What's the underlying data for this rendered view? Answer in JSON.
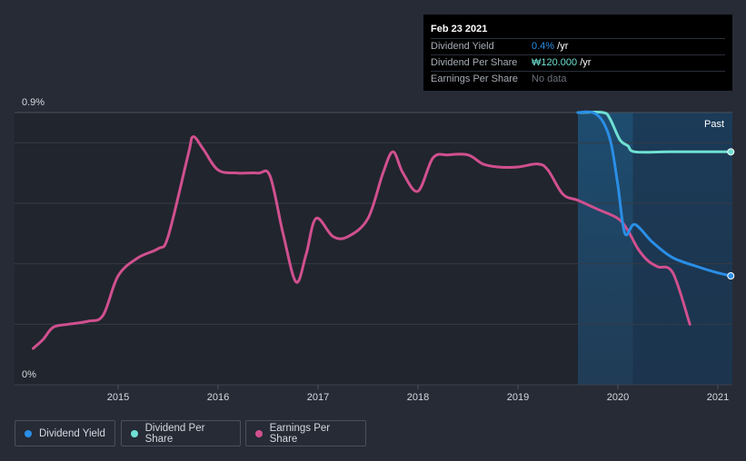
{
  "chart_data": {
    "type": "line",
    "title": "",
    "ylabel": "",
    "ylim": [
      0,
      0.9
    ],
    "y_tick_labels": [
      "0.9%",
      "0%"
    ],
    "x_tick_labels": [
      "2015",
      "2016",
      "2017",
      "2018",
      "2019",
      "2020",
      "2021"
    ],
    "past_label": "Past",
    "series": [
      {
        "name": "Dividend Yield",
        "color": "#2a8ee6",
        "x": [
          2019.6,
          2019.75,
          2019.85,
          2019.93,
          2020.0,
          2020.07,
          2020.17,
          2020.35,
          2020.55,
          2020.8,
          2021.0,
          2021.13
        ],
        "y": [
          0.9,
          0.9,
          0.87,
          0.8,
          0.66,
          0.5,
          0.53,
          0.47,
          0.42,
          0.39,
          0.37,
          0.36
        ]
      },
      {
        "name": "Dividend Per Share",
        "color": "#6fe0d2",
        "x": [
          2019.6,
          2019.85,
          2019.92,
          2020.02,
          2020.1,
          2020.17,
          2020.5,
          2021.0,
          2021.13
        ],
        "y": [
          0.9,
          0.9,
          0.88,
          0.81,
          0.79,
          0.77,
          0.77,
          0.77,
          0.77
        ]
      },
      {
        "name": "Earnings Per Share",
        "color": "#d0508f",
        "x": [
          2014.15,
          2014.25,
          2014.35,
          2014.5,
          2014.7,
          2014.85,
          2015.0,
          2015.2,
          2015.4,
          2015.5,
          2015.7,
          2015.75,
          2015.85,
          2016.0,
          2016.2,
          2016.4,
          2016.52,
          2016.65,
          2016.78,
          2016.88,
          2016.98,
          2017.15,
          2017.3,
          2017.5,
          2017.65,
          2017.75,
          2017.85,
          2018.0,
          2018.15,
          2018.3,
          2018.5,
          2018.65,
          2018.8,
          2019.0,
          2019.2,
          2019.3,
          2019.45,
          2019.6,
          2019.8,
          2020.0,
          2020.1,
          2020.2,
          2020.3,
          2020.4,
          2020.55,
          2020.72
        ],
        "y": [
          0.12,
          0.15,
          0.19,
          0.2,
          0.21,
          0.23,
          0.36,
          0.42,
          0.45,
          0.49,
          0.76,
          0.82,
          0.78,
          0.71,
          0.7,
          0.7,
          0.69,
          0.5,
          0.34,
          0.43,
          0.55,
          0.49,
          0.49,
          0.55,
          0.7,
          0.77,
          0.7,
          0.64,
          0.75,
          0.76,
          0.76,
          0.73,
          0.72,
          0.72,
          0.73,
          0.71,
          0.63,
          0.61,
          0.58,
          0.55,
          0.51,
          0.45,
          0.41,
          0.39,
          0.37,
          0.2
        ]
      }
    ]
  },
  "tooltip": {
    "date": "Feb 23 2021",
    "rows": [
      {
        "label": "Dividend Yield",
        "value": "0.4%",
        "unit": " /yr",
        "color": "#2a8ee6"
      },
      {
        "label": "Dividend Per Share",
        "value": "₩120.000",
        "unit": " /yr",
        "color": "#6fe0d2"
      },
      {
        "label": "Earnings Per Share",
        "value": "No data",
        "unit": "",
        "color": "#6b707a"
      }
    ]
  },
  "legend": [
    {
      "label": "Dividend Yield",
      "color": "#2a8ee6"
    },
    {
      "label": "Dividend Per Share",
      "color": "#6fe0d2"
    },
    {
      "label": "Earnings Per Share",
      "color": "#d0508f"
    }
  ]
}
